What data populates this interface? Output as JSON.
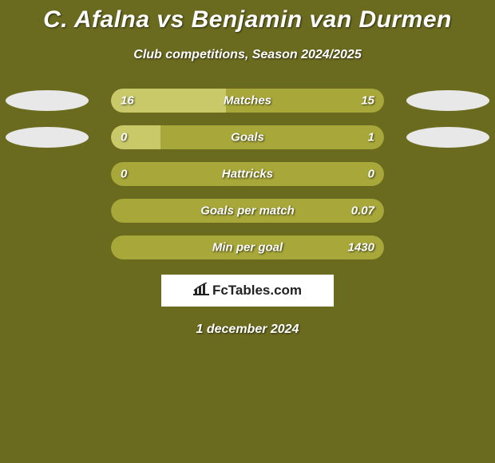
{
  "title": "C. Afalna vs Benjamin van Durmen",
  "subtitle": "Club competitions, Season 2024/2025",
  "date": "1 december 2024",
  "logo_text": "FcTables.com",
  "colors": {
    "background": "#6b6b20",
    "bar_base": "#a8a83a",
    "bar_accent": "#c9c96a",
    "left_ellipse_1": "#e8e8e8",
    "left_ellipse_2": "#e8e8e8",
    "right_ellipse_1": "#e8e8e8",
    "right_ellipse_2": "#e8e8e8",
    "text": "#ffffff"
  },
  "stats": [
    {
      "label": "Matches",
      "left_val": "16",
      "right_val": "15",
      "left_pct": 42,
      "right_pct": 0,
      "show_left_ellipse": true,
      "show_right_ellipse": true,
      "left_ellipse_color": "#e8e8e8",
      "right_ellipse_color": "#e8e8e8"
    },
    {
      "label": "Goals",
      "left_val": "0",
      "right_val": "1",
      "left_pct": 18,
      "right_pct": 0,
      "show_left_ellipse": true,
      "show_right_ellipse": true,
      "left_ellipse_color": "#e8e8e8",
      "right_ellipse_color": "#e8e8e8"
    },
    {
      "label": "Hattricks",
      "left_val": "0",
      "right_val": "0",
      "left_pct": 0,
      "right_pct": 0,
      "show_left_ellipse": false,
      "show_right_ellipse": false
    },
    {
      "label": "Goals per match",
      "left_val": "",
      "right_val": "0.07",
      "left_pct": 0,
      "right_pct": 0,
      "show_left_ellipse": false,
      "show_right_ellipse": false
    },
    {
      "label": "Min per goal",
      "left_val": "",
      "right_val": "1430",
      "left_pct": 0,
      "right_pct": 0,
      "show_left_ellipse": false,
      "show_right_ellipse": false
    }
  ]
}
